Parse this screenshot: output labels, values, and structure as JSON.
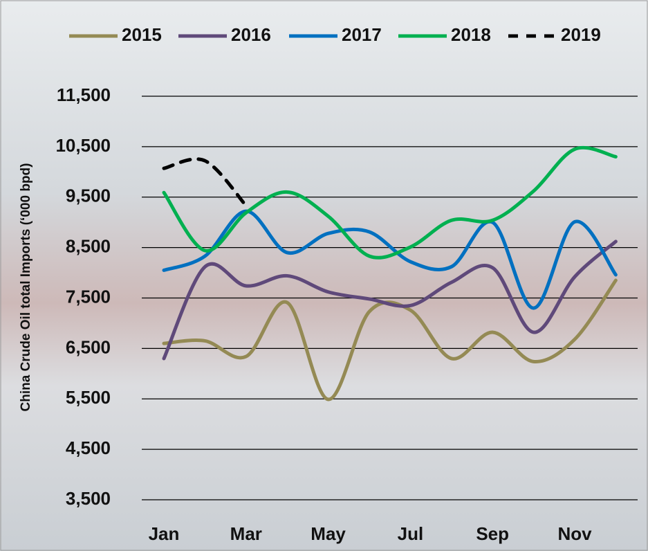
{
  "chart_data": {
    "type": "line",
    "y_label": "China Crude Oil total Imports (‘000 bpd)",
    "categories": [
      "Jan",
      null,
      "Mar",
      null,
      "May",
      null,
      "Jul",
      null,
      "Sep",
      null,
      "Nov",
      null
    ],
    "series": [
      {
        "name": "2015",
        "color": "#948a54",
        "line_style": "solid",
        "values": [
          6600,
          6650,
          6340,
          7410,
          5490,
          7230,
          7260,
          6300,
          6820,
          6240,
          6680,
          7850
        ]
      },
      {
        "name": "2016",
        "color": "#5f497a",
        "line_style": "solid",
        "values": [
          6300,
          8120,
          7740,
          7940,
          7620,
          7480,
          7350,
          7810,
          8100,
          6820,
          7920,
          8620
        ]
      },
      {
        "name": "2017",
        "color": "#0070c0",
        "line_style": "solid",
        "values": [
          8050,
          8330,
          9220,
          8400,
          8780,
          8810,
          8220,
          8120,
          9000,
          7300,
          9010,
          7960
        ]
      },
      {
        "name": "2018",
        "color": "#00b050",
        "line_style": "solid",
        "values": [
          9590,
          8440,
          9190,
          9600,
          9120,
          8330,
          8510,
          9040,
          9040,
          9620,
          10450,
          10300
        ]
      },
      {
        "name": "2019",
        "color": "#000000",
        "line_style": "dashed",
        "values": [
          10070,
          10220,
          9330,
          null,
          null,
          null,
          null,
          null,
          null,
          null,
          null,
          null
        ]
      }
    ],
    "ylim": [
      3500,
      11500
    ],
    "yticks": [
      {
        "value": 3500,
        "label": "3,500"
      },
      {
        "value": 4500,
        "label": "4,500"
      },
      {
        "value": 5500,
        "label": "5,500"
      },
      {
        "value": 6500,
        "label": "6,500"
      },
      {
        "value": 7500,
        "label": "7,500"
      },
      {
        "value": 8500,
        "label": "8,500"
      },
      {
        "value": 9500,
        "label": "9,500"
      },
      {
        "value": 10500,
        "label": "10,500"
      },
      {
        "value": 11500,
        "label": "11,500"
      }
    ],
    "grid": true,
    "legend": "top"
  }
}
